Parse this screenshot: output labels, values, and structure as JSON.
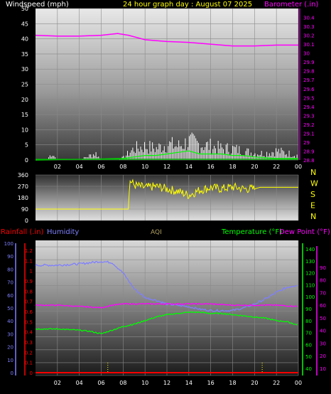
{
  "header": {
    "left_title": "Windspeed (mph)",
    "center_title": "24 hour graph day : August 07 2025",
    "right_title": "Barometer (.in)"
  },
  "colors": {
    "white_text": "#ffffff",
    "yellow": "#ffff00",
    "magenta": "#ff00ff",
    "green": "#00ff00",
    "green_dark": "#00aa00",
    "red": "#ff0000",
    "blue": "#7f7fff",
    "grid": "#8a8a8a",
    "aqi_text": "#b0a060"
  },
  "x_ticks": [
    "02",
    "04",
    "06",
    "08",
    "10",
    "12",
    "14",
    "16",
    "18",
    "20",
    "22",
    "00"
  ],
  "chart_data": [
    {
      "name": "wind-barometer",
      "type": "line",
      "ylabel_left": "Windspeed (mph)",
      "ylabel_right": "Barometer (.in)",
      "yleft_ticks": [
        0,
        5,
        10,
        15,
        20,
        25,
        30,
        35,
        40,
        45,
        50
      ],
      "yleft_lim": [
        0,
        50
      ],
      "yright_ticks": [
        "28.8",
        "28.9",
        "29",
        "29.1",
        "29.2",
        "29.3",
        "29.4",
        "29.5",
        "29.6",
        "29.7",
        "29.8",
        "29.9",
        "30",
        "30.1",
        "30.2",
        "30.3",
        "30.4"
      ],
      "yright_lim": [
        28.8,
        30.5
      ],
      "series": [
        {
          "name": "Barometer (.in)",
          "axis": "right",
          "x": [
            0,
            2,
            4,
            6,
            7.5,
            8.5,
            10,
            12,
            14,
            16,
            18,
            20,
            22,
            24
          ],
          "values": [
            30.2,
            30.19,
            30.19,
            30.2,
            30.22,
            30.2,
            30.15,
            30.13,
            30.12,
            30.1,
            30.08,
            30.08,
            30.09,
            30.09
          ]
        },
        {
          "name": "Windspeed (mph)",
          "axis": "left",
          "x": [
            0,
            1,
            1.5,
            2,
            4,
            5.5,
            6,
            7,
            8,
            8.5,
            9,
            10,
            11,
            12,
            13,
            14,
            15,
            16,
            17,
            18,
            19,
            20,
            21,
            22,
            23,
            24
          ],
          "values": [
            0,
            0,
            3,
            0,
            0,
            3,
            0,
            0,
            1,
            3,
            5,
            6,
            5,
            7,
            6,
            8,
            7,
            6,
            5,
            5,
            4,
            3,
            3,
            4,
            3,
            2
          ]
        },
        {
          "name": "Wind gust (mph)",
          "axis": "left",
          "x": [
            0,
            8,
            9,
            10,
            11,
            12,
            13,
            14,
            15,
            16,
            17,
            18,
            19,
            20,
            22,
            24
          ],
          "values": [
            0,
            0.5,
            1,
            1.5,
            1.5,
            2,
            2.5,
            3,
            2,
            2,
            2,
            1.5,
            1.5,
            1,
            0.5,
            0.5
          ]
        }
      ]
    },
    {
      "name": "wind-direction",
      "type": "line",
      "yleft_ticks": [
        0,
        90,
        180,
        270,
        360
      ],
      "yleft_lim": [
        0,
        360
      ],
      "compass_labels": [
        "N",
        "W",
        "S",
        "E",
        "N"
      ],
      "series": [
        {
          "name": "Wind direction",
          "x": [
            0,
            8.5,
            8.6,
            9,
            10,
            11,
            12,
            13,
            14,
            15,
            16,
            17,
            18,
            19,
            20,
            20.5,
            24
          ],
          "values": [
            90,
            90,
            320,
            280,
            260,
            270,
            250,
            230,
            200,
            240,
            260,
            250,
            265,
            250,
            250,
            262,
            262
          ]
        }
      ]
    },
    {
      "name": "temperature-humidity",
      "type": "line",
      "legend": [
        "Rainfall (.in)",
        "Humidity",
        "AQI",
        "Temperature (°F)",
        "Dew Point (°F)"
      ],
      "rain_ticks": [
        "0",
        "0.1",
        "0.2",
        "0.3",
        "0.4",
        "0.5",
        "0.6",
        "0.7",
        "0.8",
        "0.9",
        "1",
        "1.1",
        "1.2"
      ],
      "humidity_ticks": [
        0,
        10,
        20,
        30,
        40,
        50,
        60,
        70,
        80,
        90,
        100
      ],
      "temp_ticks": [
        40,
        50,
        60,
        70,
        80,
        90,
        100,
        110,
        120,
        130,
        140
      ],
      "dew_ticks": [
        10,
        20,
        30,
        40,
        50,
        60,
        70,
        80,
        90
      ],
      "series": [
        {
          "name": "Humidity",
          "x": [
            0,
            2,
            4,
            6,
            7,
            8,
            9,
            10,
            11,
            12,
            13,
            14,
            15,
            16,
            17,
            18,
            19,
            20,
            21,
            22,
            23,
            24
          ],
          "values": [
            83,
            83,
            84,
            86,
            85,
            77,
            65,
            58,
            56,
            53,
            52,
            51,
            49,
            48,
            48,
            48,
            50,
            53,
            57,
            62,
            66,
            68
          ]
        },
        {
          "name": "Temperature (°F)",
          "x": [
            0,
            2,
            4,
            5,
            6,
            7,
            8,
            9,
            10,
            11,
            12,
            13,
            14,
            15,
            16,
            17,
            18,
            19,
            20,
            21,
            22,
            23,
            24
          ],
          "values": [
            73,
            73,
            72,
            71,
            69,
            72,
            75,
            77,
            80,
            83,
            85,
            86,
            87,
            87,
            86,
            86,
            85,
            84,
            83,
            82,
            80,
            79,
            76
          ]
        },
        {
          "name": "Dew Point (°F)",
          "x": [
            0,
            2,
            4,
            6,
            7,
            8,
            10,
            12,
            14,
            16,
            18,
            20,
            22,
            24
          ],
          "values": [
            60,
            60,
            59,
            58,
            60,
            61,
            61,
            61,
            61,
            61,
            60,
            60,
            60,
            59
          ]
        },
        {
          "name": "Rainfall (.in)",
          "x": [
            0,
            24
          ],
          "values": [
            0,
            0
          ]
        }
      ]
    }
  ]
}
